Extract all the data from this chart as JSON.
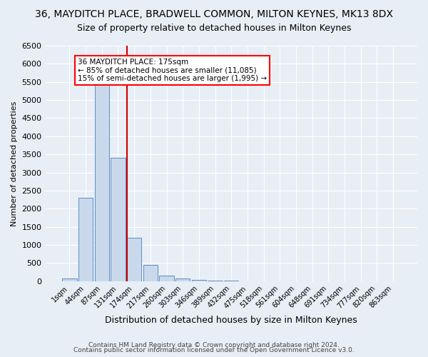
{
  "title1": "36, MAYDITCH PLACE, BRADWELL COMMON, MILTON KEYNES, MK13 8DX",
  "title2": "Size of property relative to detached houses in Milton Keynes",
  "xlabel": "Distribution of detached houses by size in Milton Keynes",
  "ylabel": "Number of detached properties",
  "annotation_title": "36 MAYDITCH PLACE: 175sqm",
  "annotation_line2": "← 85% of detached houses are smaller (11,085)",
  "annotation_line3": "15% of semi-detached houses are larger (1,995) →",
  "footer1": "Contains HM Land Registry data © Crown copyright and database right 2024.",
  "footer2": "Contains public sector information licensed under the Open Government Licence v3.0.",
  "bar_labels": [
    "1sqm",
    "44sqm",
    "87sqm",
    "131sqm",
    "174sqm",
    "217sqm",
    "260sqm",
    "303sqm",
    "346sqm",
    "389sqm",
    "432sqm",
    "475sqm",
    "518sqm",
    "561sqm",
    "604sqm",
    "648sqm",
    "691sqm",
    "734sqm",
    "777sqm",
    "820sqm",
    "863sqm"
  ],
  "bar_values": [
    70,
    2300,
    5500,
    3400,
    1200,
    450,
    150,
    80,
    30,
    15,
    8,
    4,
    2,
    1,
    0,
    0,
    0,
    0,
    0,
    0,
    0
  ],
  "bar_color": "#c9d9eb",
  "bar_edge_color": "#5b8dc8",
  "highlight_bar_index": 11,
  "highlight_bar_color": "#4472c4",
  "vline_bar_index": 4,
  "ylim": [
    0,
    6500
  ],
  "yticks": [
    0,
    500,
    1000,
    1500,
    2000,
    2500,
    3000,
    3500,
    4000,
    4500,
    5000,
    5500,
    6000,
    6500
  ],
  "background_color": "#e8eef5",
  "grid_color": "#ffffff",
  "title1_fontsize": 10,
  "title2_fontsize": 9
}
